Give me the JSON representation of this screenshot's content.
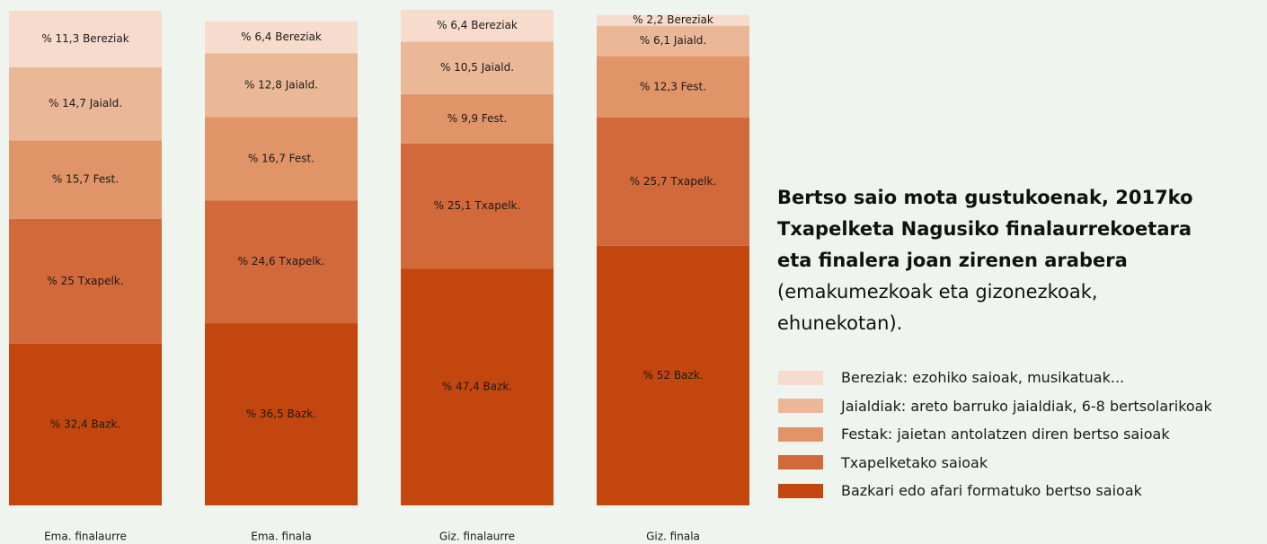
{
  "chart_data": {
    "type": "stacked_bar",
    "title": "Bertso saio mota gustukoenak, 2017ko Txapelketa Nagusiko finalaurrekoetara eta finalera joan zirenen arabera",
    "subtitle": "(emakumezkoak eta gizonezkoak, ehunekotan).",
    "categories": [
      "Ema. finalaurre",
      "Ema. finala",
      "Giz. finalaurre",
      "Giz. finala"
    ],
    "ylim": [
      0,
      100
    ],
    "series": [
      {
        "name": "Bazkari edo afari formatuko bertso saioak",
        "color": "#c4460f",
        "values": [
          32.4,
          36.5,
          47.4,
          52
        ],
        "value_labels": [
          "% 32,4 Bazk.",
          "% 36,5 Bazk.",
          "% 47,4 Bazk.",
          "% 52 Bazk."
        ]
      },
      {
        "name": "Txapelketako saioak",
        "color": "#d2693a",
        "values": [
          25,
          24.6,
          25.1,
          25.7
        ],
        "value_labels": [
          "% 25 Txapelk.",
          "% 24,6 Txapelk.",
          "% 25,1 Txapelk.",
          "% 25,7 Txapelk."
        ]
      },
      {
        "name": "Festak: jaietan antolatzen diren bertso saioak",
        "color": "#e09468",
        "values": [
          15.7,
          16.7,
          9.9,
          12.3
        ],
        "value_labels": [
          "% 15,7 Fest.",
          "% 16,7 Fest.",
          "% 9,9 Fest.",
          "% 12,3 Fest."
        ]
      },
      {
        "name": "Jaialdiak: areto barruko jaialdiak, 6-8 bertsolarikoak",
        "color": "#ebb897",
        "values": [
          14.7,
          12.8,
          10.5,
          6.1
        ],
        "value_labels": [
          "% 14,7 Jaiald.",
          "% 12,8 Jaiald.",
          "% 10,5 Jaiald.",
          "% 6,1 Jaiald."
        ]
      },
      {
        "name": "Bereziak: ezohiko saioak, musikatuak...",
        "color": "#f7dccd",
        "values": [
          11.3,
          6.4,
          6.4,
          2.2
        ],
        "value_labels": [
          "% 11,3 Bereziak",
          "% 6,4 Bereziak",
          "% 6,4 Bereziak",
          "% 2,2 Bereziak"
        ]
      }
    ]
  }
}
